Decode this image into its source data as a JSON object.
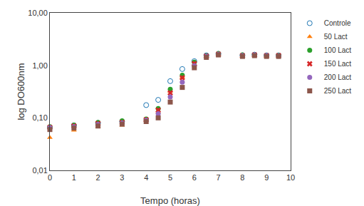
{
  "chart_data": {
    "type": "scatter",
    "xlabel": "Tempo (horas)",
    "ylabel": "log DO600nm",
    "log": "y",
    "grid": false,
    "legend": "right",
    "xlim": [
      0,
      10
    ],
    "ylim": [
      0.01,
      10.0
    ],
    "xticks": [
      0,
      1,
      2,
      3,
      4,
      5,
      6,
      7,
      8,
      9,
      10
    ],
    "yticks": [
      {
        "value": 0.01,
        "label": "0,01"
      },
      {
        "value": 0.1,
        "label": "0,10"
      },
      {
        "value": 1.0,
        "label": "1,00"
      },
      {
        "value": 10.0,
        "label": "10,00"
      }
    ],
    "series": [
      {
        "name": "Controle",
        "marker": "circle-open",
        "x": [
          0,
          1,
          2,
          3,
          4,
          4.5,
          5.0,
          5.5,
          6.0,
          6.5,
          7,
          8,
          8.5,
          9,
          9.5
        ],
        "values": [
          0.065,
          0.072,
          0.08,
          0.085,
          0.175,
          0.22,
          0.5,
          0.85,
          1.2,
          1.55,
          1.65,
          1.55,
          1.6,
          1.55,
          1.55
        ]
      },
      {
        "name": "50 Lact",
        "marker": "triangle-up",
        "x": [
          0,
          1,
          2,
          3,
          4,
          4.5,
          5.0,
          5.5,
          6.0,
          6.5,
          7,
          8,
          8.5,
          9,
          9.5
        ],
        "values": [
          0.042,
          0.058,
          0.068,
          0.072,
          0.09,
          0.13,
          0.32,
          0.6,
          1.05,
          1.48,
          1.58,
          1.48,
          1.53,
          1.48,
          1.48
        ]
      },
      {
        "name": "100 Lact",
        "marker": "circle",
        "x": [
          0,
          1,
          2,
          3,
          4,
          4.5,
          5.0,
          5.5,
          6.0,
          6.5,
          7,
          8,
          8.5,
          9,
          9.5
        ],
        "values": [
          0.068,
          0.073,
          0.082,
          0.088,
          0.095,
          0.15,
          0.35,
          0.65,
          1.15,
          1.52,
          1.68,
          1.58,
          1.58,
          1.53,
          1.53
        ]
      },
      {
        "name": "150 Lact",
        "marker": "x",
        "x": [
          0,
          1,
          2,
          3,
          4,
          4.5,
          5.0,
          5.5,
          6.0,
          6.5,
          7,
          8,
          8.5,
          9,
          9.5
        ],
        "values": [
          0.066,
          0.07,
          0.078,
          0.082,
          0.092,
          0.14,
          0.3,
          0.58,
          1.08,
          1.5,
          1.63,
          1.53,
          1.58,
          1.53,
          1.53
        ]
      },
      {
        "name": "200 Lact",
        "marker": "circle",
        "x": [
          0,
          1,
          2,
          3,
          4,
          4.5,
          5.0,
          5.5,
          6.0,
          6.5,
          7,
          8,
          8.5,
          9,
          9.5
        ],
        "values": [
          0.065,
          0.068,
          0.075,
          0.08,
          0.09,
          0.12,
          0.25,
          0.48,
          0.98,
          1.48,
          1.63,
          1.53,
          1.58,
          1.53,
          1.5
        ]
      },
      {
        "name": "250 Lact",
        "marker": "square",
        "x": [
          0,
          1,
          2,
          3,
          4,
          4.5,
          5.0,
          5.5,
          6.0,
          6.5,
          7,
          8,
          8.5,
          9,
          9.5
        ],
        "values": [
          0.06,
          0.064,
          0.07,
          0.076,
          0.085,
          0.1,
          0.2,
          0.38,
          0.9,
          1.42,
          1.58,
          1.48,
          1.53,
          1.48,
          1.48
        ]
      }
    ]
  }
}
